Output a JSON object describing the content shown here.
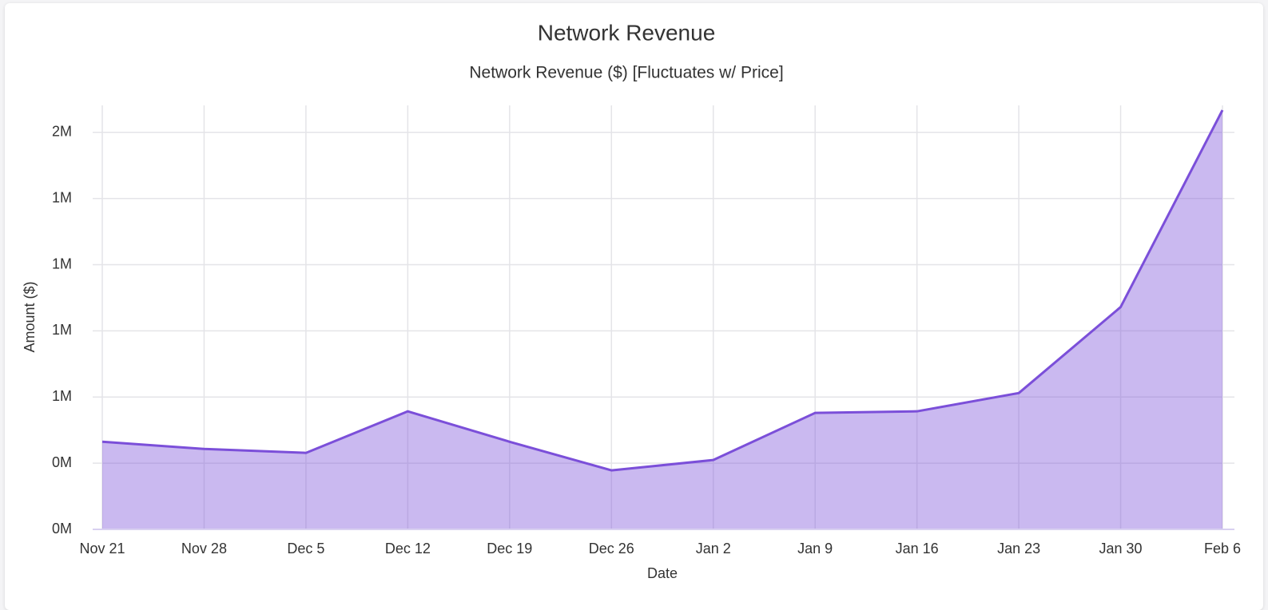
{
  "chart_data": {
    "type": "area",
    "title": "Network Revenue",
    "subtitle": "Network Revenue ($) [Fluctuates w/ Price]",
    "x_label": "Date",
    "y_label": "Amount ($)",
    "categories": [
      "Nov 21",
      "Nov 28",
      "Dec 5",
      "Dec 12",
      "Dec 19",
      "Dec 26",
      "Jan 2",
      "Jan 9",
      "Jan 16",
      "Jan 23",
      "Jan 30",
      "Feb 6"
    ],
    "series": [
      {
        "name": "Network Revenue",
        "color": "#7b4fd9",
        "values": [
          331000,
          304000,
          289000,
          446000,
          331000,
          223000,
          262000,
          440000,
          446000,
          515000,
          840000,
          1584000
        ]
      }
    ],
    "ylim": [
      0,
      1602000
    ],
    "yticks": [
      {
        "value": 0,
        "label": "0M"
      },
      {
        "value": 250000,
        "label": "0M"
      },
      {
        "value": 500000,
        "label": "1M"
      },
      {
        "value": 750000,
        "label": "1M"
      },
      {
        "value": 1000000,
        "label": "1M"
      },
      {
        "value": 1250000,
        "label": "1M"
      },
      {
        "value": 1500000,
        "label": "2M"
      }
    ],
    "grid": true
  }
}
